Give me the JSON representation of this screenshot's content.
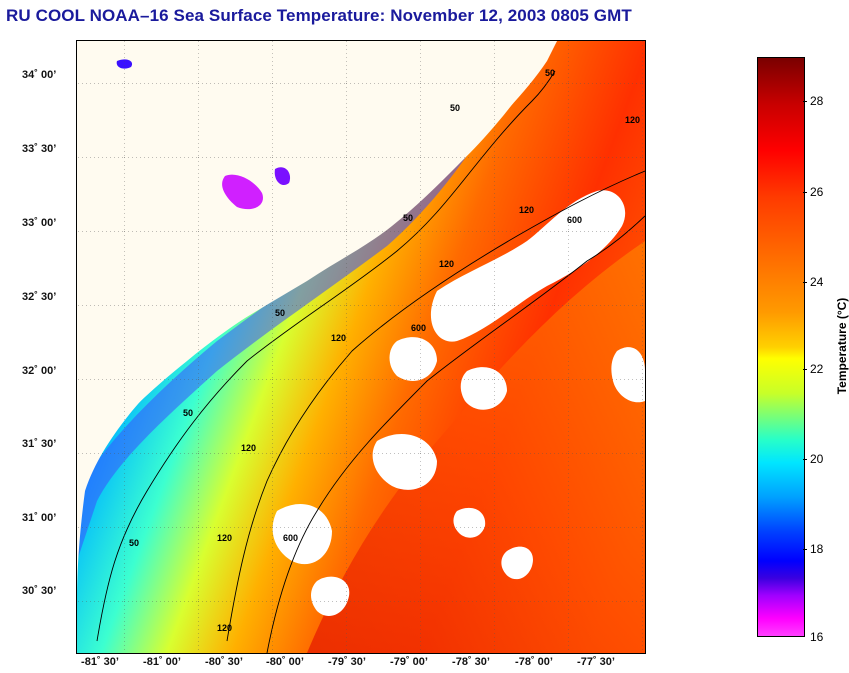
{
  "title": "RU COOL  NOAA–16  Sea Surface Temperature:  November 12, 2003 0805 GMT",
  "map": {
    "lat_labels": [
      "34˚ 00’",
      "33˚ 30’",
      "33˚ 00’",
      "32˚ 30’",
      "32˚ 00’",
      "31˚ 30’",
      "31˚ 00’",
      "30˚ 30’"
    ],
    "lon_labels": [
      "-81˚ 30’",
      "-81˚ 00’",
      "-80˚ 30’",
      "-80˚ 00’",
      "-79˚ 30’",
      "-79˚ 00’",
      "-78˚ 30’",
      "-78˚ 00’",
      "-77˚ 30’"
    ],
    "contour_labels": [
      "50",
      "50",
      "50",
      "50",
      "50",
      "50",
      "120",
      "120",
      "120",
      "120",
      "120",
      "120",
      "120",
      "600",
      "600",
      "600"
    ]
  },
  "colorbar": {
    "title": "Temperature (°C)",
    "ticks": [
      "28",
      "26",
      "24",
      "22",
      "20",
      "18",
      "16"
    ],
    "colors": [
      "#7a0000",
      "#ff0000",
      "#ff9a00",
      "#ffff00",
      "#00e6ff",
      "#0000ff",
      "#ff00ff"
    ]
  }
}
